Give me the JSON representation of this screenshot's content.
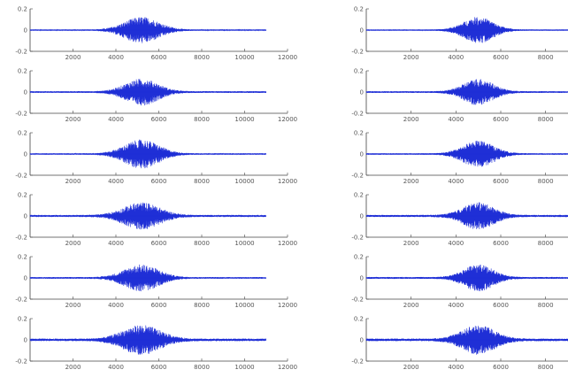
{
  "chart_data": {
    "type": "line",
    "layout": "two columns of six stacked waveform panels",
    "series_color": "#1f2fd6",
    "axis_color": "#444444",
    "panels": [
      {
        "column": "left",
        "row": 1,
        "xlim": [
          0,
          12000
        ],
        "ylim": [
          -0.2,
          0.2
        ],
        "xticks": [
          "2000",
          "4000",
          "6000",
          "8000",
          "10000",
          "12000"
        ],
        "yticks": [
          "0.2",
          "0",
          "-0.2"
        ],
        "signal": {
          "start": 0,
          "end": 11000,
          "burst_center": 5200,
          "burst_width": 1100,
          "peak_amplitude": 0.12,
          "baseline_noise": 0.006
        },
        "series": [
          {
            "values": []
          }
        ]
      },
      {
        "column": "left",
        "row": 2,
        "xlim": [
          0,
          12000
        ],
        "ylim": [
          -0.2,
          0.2
        ],
        "xticks": [
          "2000",
          "4000",
          "6000",
          "8000",
          "10000",
          "12000"
        ],
        "yticks": [
          "0.2",
          "0",
          "-0.2"
        ],
        "signal": {
          "start": 0,
          "end": 11000,
          "burst_center": 5200,
          "burst_width": 1050,
          "peak_amplitude": 0.12,
          "baseline_noise": 0.008
        },
        "series": [
          {
            "values": []
          }
        ]
      },
      {
        "column": "left",
        "row": 3,
        "xlim": [
          0,
          12000
        ],
        "ylim": [
          -0.2,
          0.2
        ],
        "xticks": [
          "2000",
          "4000",
          "6000",
          "8000",
          "10000",
          "12000"
        ],
        "yticks": [
          "0.2",
          "0",
          "-0.2"
        ],
        "signal": {
          "start": 0,
          "end": 11000,
          "burst_center": 5200,
          "burst_width": 1100,
          "peak_amplitude": 0.13,
          "baseline_noise": 0.007
        },
        "series": [
          {
            "values": []
          }
        ]
      },
      {
        "column": "left",
        "row": 4,
        "xlim": [
          0,
          12000
        ],
        "ylim": [
          -0.2,
          0.2
        ],
        "xticks": [
          "2000",
          "4000",
          "6000",
          "8000",
          "10000",
          "12000"
        ],
        "yticks": [
          "0.2",
          "0",
          "-0.2"
        ],
        "signal": {
          "start": 0,
          "end": 11000,
          "burst_center": 5200,
          "burst_width": 1150,
          "peak_amplitude": 0.12,
          "baseline_noise": 0.01
        },
        "series": [
          {
            "values": []
          }
        ]
      },
      {
        "column": "left",
        "row": 5,
        "xlim": [
          0,
          12000
        ],
        "ylim": [
          -0.2,
          0.2
        ],
        "xticks": [
          "2000",
          "4000",
          "6000",
          "8000",
          "10000",
          "12000"
        ],
        "yticks": [
          "0.2",
          "0",
          "-0.2"
        ],
        "signal": {
          "start": 0,
          "end": 11000,
          "burst_center": 5200,
          "burst_width": 1100,
          "peak_amplitude": 0.12,
          "baseline_noise": 0.008
        },
        "series": [
          {
            "values": []
          }
        ]
      },
      {
        "column": "left",
        "row": 6,
        "xlim": [
          0,
          12000
        ],
        "ylim": [
          -0.2,
          0.2
        ],
        "xticks": [
          "2000",
          "4000",
          "6000",
          "8000",
          "10000",
          "12000"
        ],
        "yticks": [
          "0.2",
          "0",
          "-0.2"
        ],
        "signal": {
          "start": 0,
          "end": 11000,
          "burst_center": 5200,
          "burst_width": 1200,
          "peak_amplitude": 0.13,
          "baseline_noise": 0.012
        },
        "series": [
          {
            "values": []
          }
        ]
      },
      {
        "column": "right",
        "row": 1,
        "xlim": [
          0,
          9000
        ],
        "ylim": [
          -0.2,
          0.2
        ],
        "xticks": [
          "2000",
          "4000",
          "6000",
          "8000"
        ],
        "yticks": [
          "0.2",
          "0",
          "-0.2"
        ],
        "signal": {
          "start": 0,
          "end": 9000,
          "burst_center": 5000,
          "burst_width": 900,
          "peak_amplitude": 0.12,
          "baseline_noise": 0.006
        },
        "series": [
          {
            "values": []
          }
        ]
      },
      {
        "column": "right",
        "row": 2,
        "xlim": [
          0,
          9000
        ],
        "ylim": [
          -0.2,
          0.2
        ],
        "xticks": [
          "2000",
          "4000",
          "6000",
          "8000"
        ],
        "yticks": [
          "0.2",
          "0",
          "-0.2"
        ],
        "signal": {
          "start": 0,
          "end": 9000,
          "burst_center": 5000,
          "burst_width": 900,
          "peak_amplitude": 0.12,
          "baseline_noise": 0.008
        },
        "series": [
          {
            "values": []
          }
        ]
      },
      {
        "column": "right",
        "row": 3,
        "xlim": [
          0,
          9000
        ],
        "ylim": [
          -0.2,
          0.2
        ],
        "xticks": [
          "2000",
          "4000",
          "6000",
          "8000"
        ],
        "yticks": [
          "0.2",
          "0",
          "-0.2"
        ],
        "signal": {
          "start": 0,
          "end": 9000,
          "burst_center": 5000,
          "burst_width": 950,
          "peak_amplitude": 0.12,
          "baseline_noise": 0.007
        },
        "series": [
          {
            "values": []
          }
        ]
      },
      {
        "column": "right",
        "row": 4,
        "xlim": [
          0,
          9000
        ],
        "ylim": [
          -0.2,
          0.2
        ],
        "xticks": [
          "2000",
          "4000",
          "6000",
          "8000"
        ],
        "yticks": [
          "0.2",
          "0",
          "-0.2"
        ],
        "signal": {
          "start": 0,
          "end": 9000,
          "burst_center": 5000,
          "burst_width": 950,
          "peak_amplitude": 0.12,
          "baseline_noise": 0.01
        },
        "series": [
          {
            "values": []
          }
        ]
      },
      {
        "column": "right",
        "row": 5,
        "xlim": [
          0,
          9000
        ],
        "ylim": [
          -0.2,
          0.2
        ],
        "xticks": [
          "2000",
          "4000",
          "6000",
          "8000"
        ],
        "yticks": [
          "0.2",
          "0",
          "-0.2"
        ],
        "signal": {
          "start": 0,
          "end": 9000,
          "burst_center": 5000,
          "burst_width": 900,
          "peak_amplitude": 0.12,
          "baseline_noise": 0.009
        },
        "series": [
          {
            "values": []
          }
        ]
      },
      {
        "column": "right",
        "row": 6,
        "xlim": [
          0,
          9000
        ],
        "ylim": [
          -0.2,
          0.2
        ],
        "xticks": [
          "2000",
          "4000",
          "6000",
          "8000"
        ],
        "yticks": [
          "0.2",
          "0",
          "-0.2"
        ],
        "signal": {
          "start": 0,
          "end": 9000,
          "burst_center": 5000,
          "burst_width": 1000,
          "peak_amplitude": 0.13,
          "baseline_noise": 0.012
        },
        "series": [
          {
            "values": []
          }
        ]
      }
    ]
  }
}
